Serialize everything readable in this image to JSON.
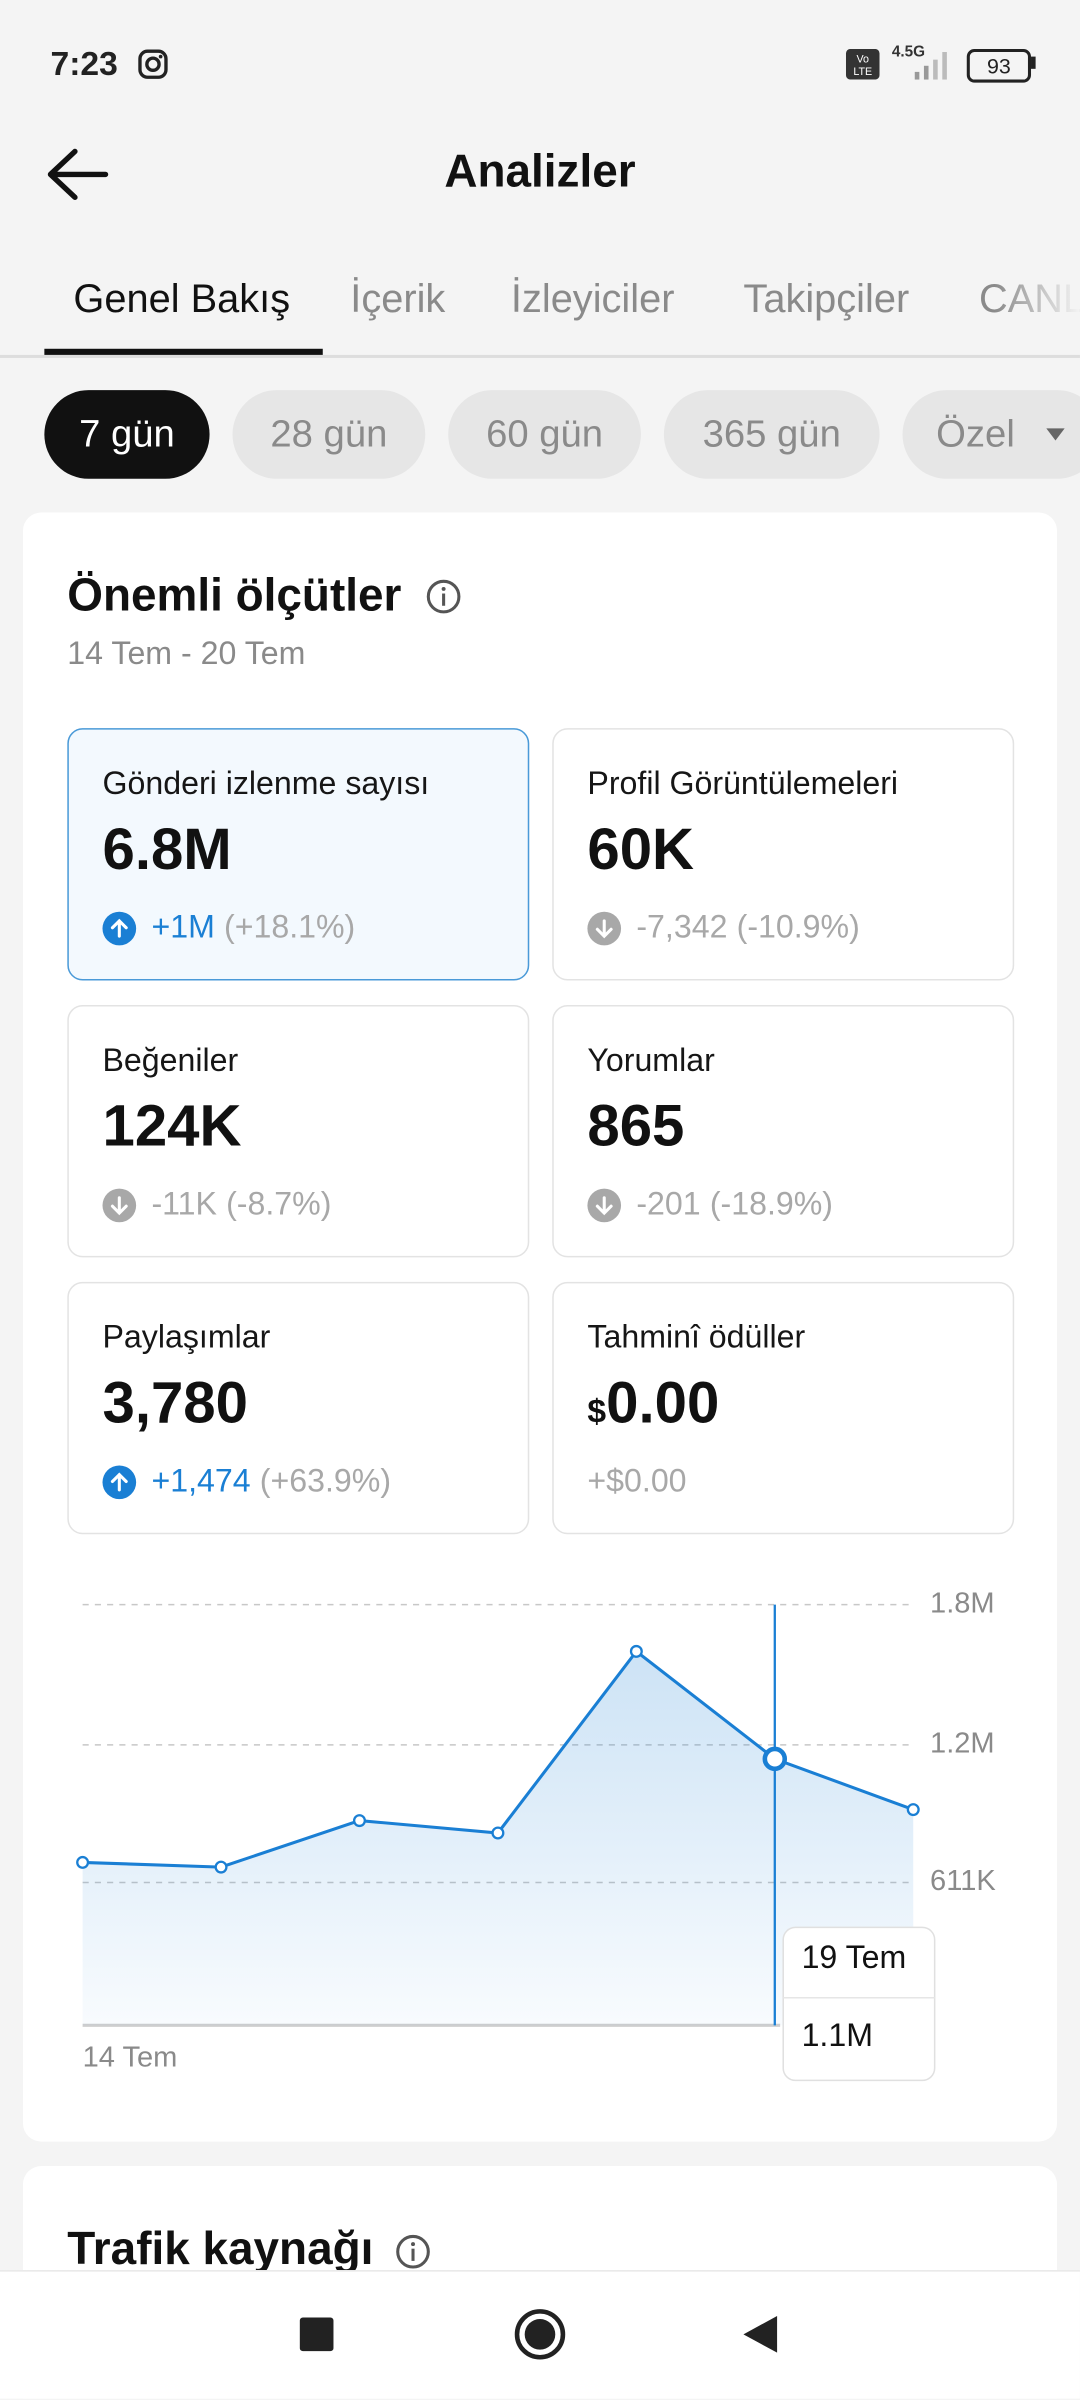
{
  "status_bar": {
    "time": "7:23",
    "network": "4.5G",
    "battery": "93"
  },
  "header": {
    "title": "Analizler"
  },
  "tabs": [
    "Genel Bakış",
    "İçerik",
    "İzleyiciler",
    "Takipçiler",
    "CANLI"
  ],
  "periods": [
    "7 gün",
    "28 gün",
    "60 gün",
    "365 gün",
    "Özel"
  ],
  "key_metrics": {
    "title": "Önemli ölçütler",
    "date_range": "14 Tem - 20 Tem",
    "cards": [
      {
        "label": "Gönderi izlenme sayısı",
        "value": "6.8M",
        "change": "+1M",
        "percent": "(+18.1%)",
        "trend": "up"
      },
      {
        "label": "Profil Görüntülemeleri",
        "value": "60K",
        "change": "-7,342",
        "percent": "(-10.9%)",
        "trend": "down"
      },
      {
        "label": "Beğeniler",
        "value": "124K",
        "change": "-11K",
        "percent": "(-8.7%)",
        "trend": "down"
      },
      {
        "label": "Yorumlar",
        "value": "865",
        "change": "-201",
        "percent": "(-18.9%)",
        "trend": "down"
      },
      {
        "label": "Paylaşımlar",
        "value": "3,780",
        "change": "+1,474",
        "percent": "(+63.9%)",
        "trend": "up"
      },
      {
        "label": "Tahminî ödüller",
        "currency": "$",
        "value": "0.00",
        "change": "+$0.00"
      }
    ]
  },
  "chart_data": {
    "type": "line",
    "categories": [
      "14 Tem",
      null,
      null,
      null,
      null,
      null,
      null
    ],
    "series": [
      {
        "name": "Gönderi izlenme sayısı",
        "color": "#1a7fd4",
        "values": [
          697000,
          677000,
          876000,
          823000,
          1600000,
          1140000,
          923000
        ]
      }
    ],
    "ylim": [
      0,
      1800000
    ],
    "yticks": [
      {
        "value": 611000,
        "label": "611K"
      },
      {
        "value": 1200000,
        "label": "1.2M"
      },
      {
        "value": 1800000,
        "label": "1.8M"
      }
    ],
    "grid": true,
    "tooltip": {
      "x": "19 Tem",
      "y": "1.1M"
    }
  },
  "traffic": {
    "title": "Trafik kaynağı"
  }
}
